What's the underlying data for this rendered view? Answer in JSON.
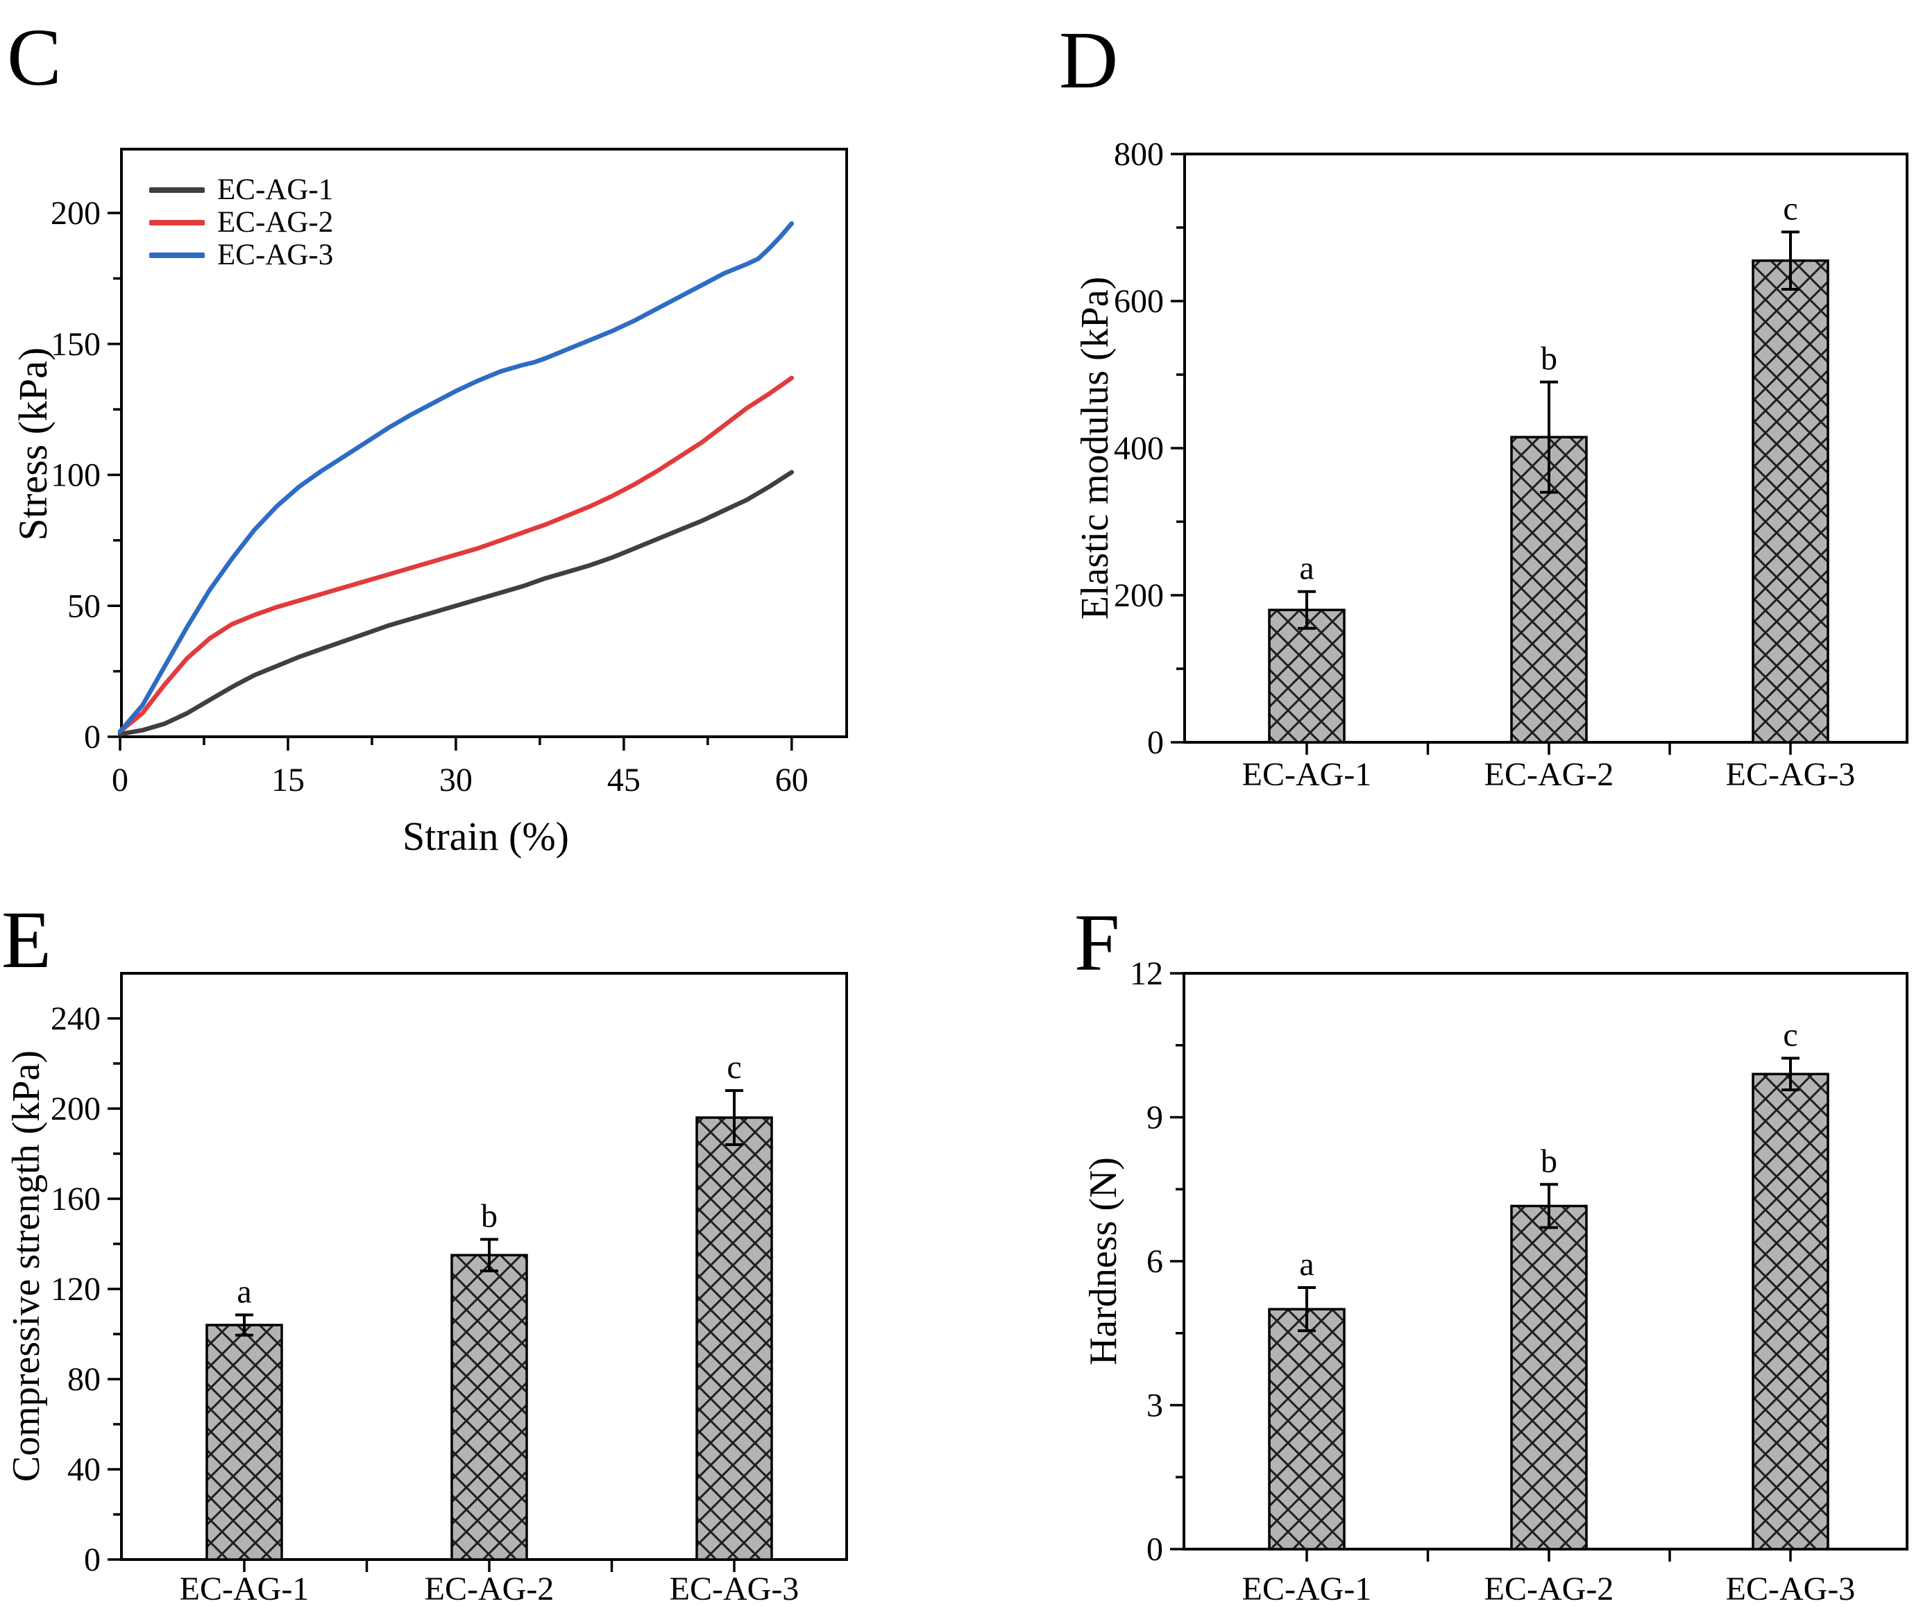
{
  "figure": {
    "background": "#ffffff",
    "axis_color": "#000000",
    "bar_fill": "#b3b3b3",
    "hatch_line_color": "#1f1f1f",
    "bar_edge_color": "#000000"
  },
  "chart_data": [
    {
      "panel_letter": "C",
      "type": "line",
      "xlabel": "Strain (%)",
      "ylabel": "Stress (kPa)",
      "x_ticks": [
        0,
        15,
        30,
        45,
        60
      ],
      "y_ticks": [
        0,
        50,
        100,
        150,
        200
      ],
      "xlim": [
        0,
        65
      ],
      "ylim": [
        0,
        223
      ],
      "grid": false,
      "legend_position": "top-left",
      "series": [
        {
          "name": "EC-AG-1",
          "color": "#3f3f3f",
          "points": [
            [
              0,
              1
            ],
            [
              2,
              2.5
            ],
            [
              4,
              5
            ],
            [
              6,
              9
            ],
            [
              8,
              14
            ],
            [
              10,
              19
            ],
            [
              12,
              23.5
            ],
            [
              14,
              27
            ],
            [
              16,
              30.5
            ],
            [
              18,
              33.5
            ],
            [
              20,
              36.5
            ],
            [
              22,
              39.5
            ],
            [
              24,
              42.5
            ],
            [
              26,
              45
            ],
            [
              28,
              47.5
            ],
            [
              30,
              50
            ],
            [
              32,
              52.5
            ],
            [
              34,
              55
            ],
            [
              36,
              57.5
            ],
            [
              38,
              60.5
            ],
            [
              40,
              63
            ],
            [
              42,
              65.5
            ],
            [
              44,
              68.5
            ],
            [
              46,
              72
            ],
            [
              48,
              75.5
            ],
            [
              50,
              79
            ],
            [
              52,
              82.5
            ],
            [
              54,
              86.5
            ],
            [
              56,
              90.5
            ],
            [
              58,
              95.5
            ],
            [
              60,
              101
            ]
          ]
        },
        {
          "name": "EC-AG-2",
          "color": "#e23b3c",
          "points": [
            [
              0,
              2
            ],
            [
              2,
              9
            ],
            [
              4,
              20
            ],
            [
              6,
              30
            ],
            [
              8,
              37.5
            ],
            [
              10,
              43
            ],
            [
              12,
              46.5
            ],
            [
              14,
              49.5
            ],
            [
              16,
              52
            ],
            [
              18,
              54.5
            ],
            [
              20,
              57
            ],
            [
              22,
              59.5
            ],
            [
              24,
              62
            ],
            [
              26,
              64.5
            ],
            [
              28,
              67
            ],
            [
              30,
              69.5
            ],
            [
              32,
              72
            ],
            [
              34,
              75
            ],
            [
              36,
              78
            ],
            [
              38,
              81
            ],
            [
              40,
              84.5
            ],
            [
              42,
              88
            ],
            [
              44,
              92
            ],
            [
              46,
              96.5
            ],
            [
              48,
              101.5
            ],
            [
              50,
              107
            ],
            [
              52,
              112.5
            ],
            [
              54,
              119
            ],
            [
              56,
              125.5
            ],
            [
              58,
              131
            ],
            [
              60,
              137
            ]
          ]
        },
        {
          "name": "EC-AG-3",
          "color": "#2d6cc4",
          "points": [
            [
              0,
              2
            ],
            [
              2,
              12
            ],
            [
              4,
              27
            ],
            [
              6,
              42
            ],
            [
              8,
              56
            ],
            [
              10,
              68
            ],
            [
              12,
              79
            ],
            [
              14,
              88
            ],
            [
              16,
              95.5
            ],
            [
              18,
              101.5
            ],
            [
              20,
              107
            ],
            [
              22,
              112.5
            ],
            [
              24,
              118
            ],
            [
              26,
              123
            ],
            [
              28,
              127.5
            ],
            [
              30,
              132
            ],
            [
              32,
              136
            ],
            [
              34,
              139.5
            ],
            [
              36,
              142
            ],
            [
              37,
              143
            ],
            [
              38,
              144.5
            ],
            [
              40,
              148
            ],
            [
              42,
              151.5
            ],
            [
              44,
              155
            ],
            [
              46,
              159
            ],
            [
              48,
              163.5
            ],
            [
              50,
              168
            ],
            [
              52,
              172.5
            ],
            [
              54,
              177
            ],
            [
              56,
              180.5
            ],
            [
              57,
              182.5
            ],
            [
              58,
              186.5
            ],
            [
              59,
              191
            ],
            [
              60,
              196
            ]
          ]
        }
      ]
    },
    {
      "panel_letter": "D",
      "type": "bar",
      "ylabel": "Elastic modulus (kPa)",
      "categories": [
        "EC-AG-1",
        "EC-AG-2",
        "EC-AG-3"
      ],
      "values": [
        180,
        415,
        655
      ],
      "errors": [
        25,
        75,
        39
      ],
      "sig_letters": [
        "a",
        "b",
        "c"
      ],
      "y_ticks": [
        0,
        200,
        400,
        600,
        800
      ],
      "ylim": [
        0,
        800
      ],
      "grid": false
    },
    {
      "panel_letter": "E",
      "type": "bar",
      "ylabel": "Compressive strength (kPa)",
      "categories": [
        "EC-AG-1",
        "EC-AG-2",
        "EC-AG-3"
      ],
      "values": [
        104,
        135,
        196
      ],
      "errors": [
        4.5,
        7,
        12
      ],
      "sig_letters": [
        "a",
        "b",
        "c"
      ],
      "y_ticks": [
        0,
        40,
        80,
        120,
        160,
        200,
        240
      ],
      "ylim": [
        0,
        260
      ],
      "grid": false
    },
    {
      "panel_letter": "F",
      "type": "bar",
      "ylabel": "Hardness (N)",
      "categories": [
        "EC-AG-1",
        "EC-AG-2",
        "EC-AG-3"
      ],
      "values": [
        5.0,
        7.15,
        9.9
      ],
      "errors": [
        0.45,
        0.45,
        0.33
      ],
      "sig_letters": [
        "a",
        "b",
        "c"
      ],
      "y_ticks": [
        0,
        3,
        6,
        9,
        12
      ],
      "ylim": [
        0,
        12
      ],
      "grid": false
    }
  ]
}
